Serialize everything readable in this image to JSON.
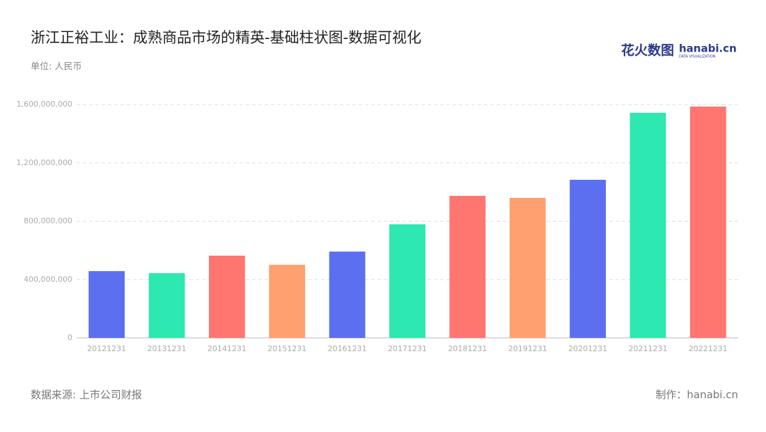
{
  "chart_data": {
    "type": "bar",
    "title": "浙江正裕工业：成熟商品市场的精英-基础柱状图-数据可视化",
    "subtitle": "单位: 人民币",
    "source": "数据来源: 上市公司财报",
    "credit": "制作：hanabi.cn",
    "logo": {
      "brand": "花火数图",
      "site": "hanabi.cn",
      "tagline": "DATA VISUALIZATION"
    },
    "categories": [
      "20121231",
      "20131231",
      "20141231",
      "20151231",
      "20161231",
      "20171231",
      "20181231",
      "20191231",
      "20201231",
      "20211231",
      "20221231"
    ],
    "values": [
      458000000,
      444000000,
      564000000,
      501000000,
      592000000,
      779000000,
      974000000,
      960000000,
      1084000000,
      1543000000,
      1586000000
    ],
    "colors": [
      "#5b6ff0",
      "#2de8b0",
      "#ff7570",
      "#ffa06e",
      "#5b6ff0",
      "#2de8b0",
      "#ff7570",
      "#ffa06e",
      "#5b6ff0",
      "#2de8b0",
      "#ff7570"
    ],
    "ylim": [
      0,
      1600000000
    ],
    "yticks": [
      0,
      {
        "value": 400000000,
        "label": "400,000,000"
      },
      {
        "value": 800000000,
        "label": "800,000,000"
      },
      {
        "value": 1200000000,
        "label": "1,200,000,000"
      },
      {
        "value": 1600000000,
        "label": "1,600,000,000"
      }
    ],
    "grid": true
  }
}
